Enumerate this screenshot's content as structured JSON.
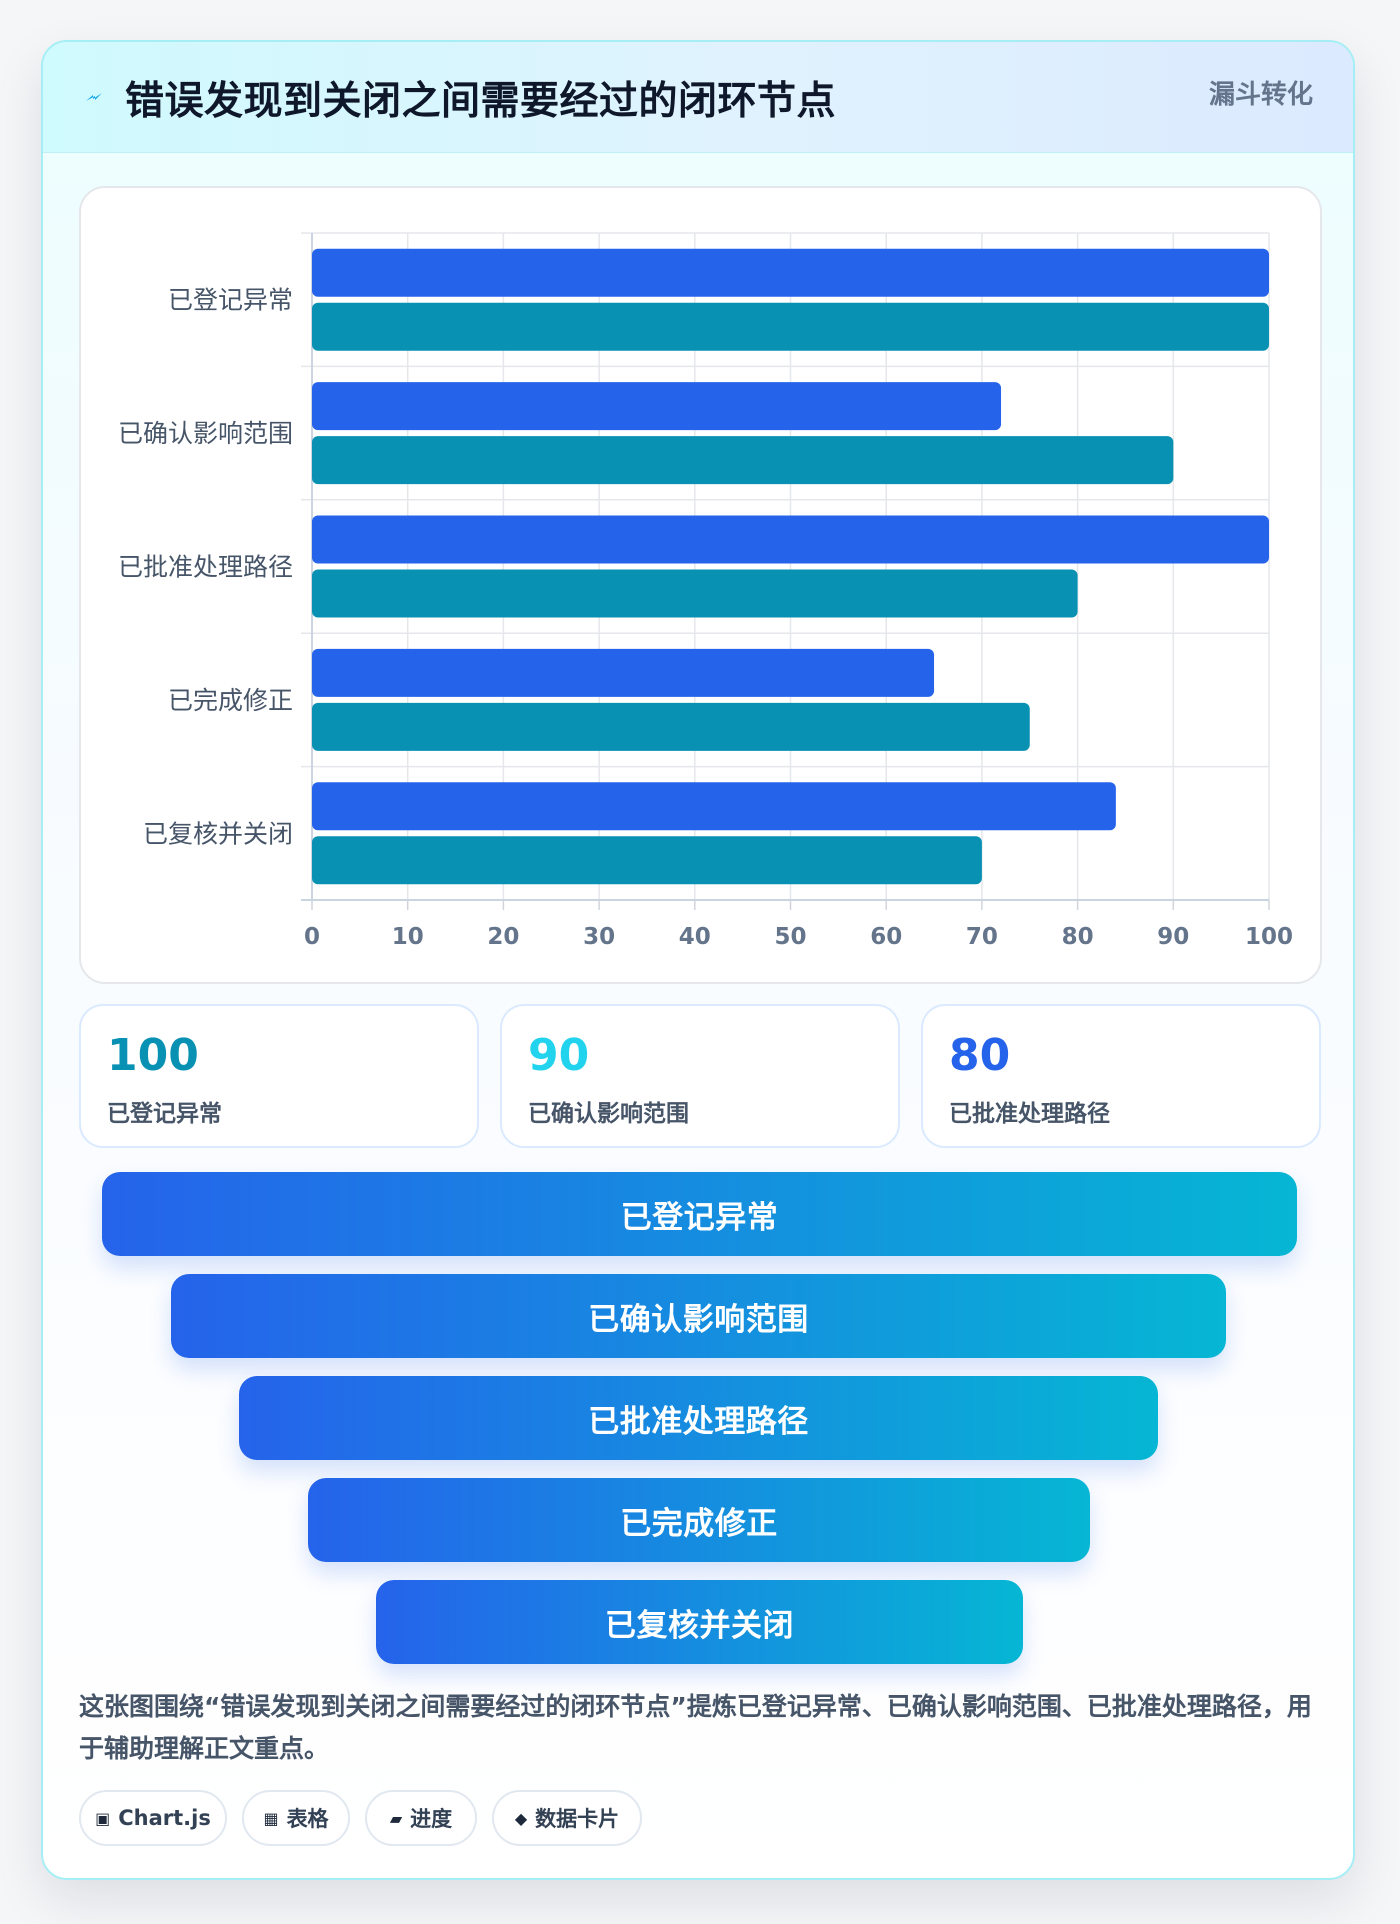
{
  "header": {
    "icon": "lightning-icon",
    "title": "错误发现到关闭之间需要经过的闭环节点",
    "tag": "漏斗转化"
  },
  "colors": {
    "series_a": "#2563eb",
    "series_b": "#0891b2",
    "stat_1": "#0891b2",
    "stat_2": "#22d3ee",
    "stat_3": "#2563eb"
  },
  "chart_data": {
    "type": "bar",
    "orientation": "horizontal",
    "categories": [
      "已登记异常",
      "已确认影响范围",
      "已批准处理路径",
      "已完成修正",
      "已复核并关闭"
    ],
    "series": [
      {
        "values": [
          100,
          72,
          100,
          65,
          84
        ]
      },
      {
        "values": [
          100,
          90,
          80,
          75,
          70
        ]
      }
    ],
    "xlim": [
      0,
      100
    ],
    "x_ticks": [
      "0",
      "10",
      "20",
      "30",
      "40",
      "50",
      "60",
      "70",
      "80",
      "90",
      "100"
    ],
    "grid": true,
    "legend": "none"
  },
  "stats": [
    {
      "value": "100",
      "label": "已登记异常"
    },
    {
      "value": "90",
      "label": "已确认影响范围"
    },
    {
      "value": "80",
      "label": "已批准处理路径"
    }
  ],
  "funnel": {
    "stages": [
      "已登记异常",
      "已确认影响范围",
      "已批准处理路径",
      "已完成修正",
      "已复核并关闭"
    ]
  },
  "note": "这张图围绕“错误发现到关闭之间需要经过的闭环节点”提炼已登记异常、已确认影响范围、已批准处理路径，用于辅助理解正文重点。",
  "chips": [
    {
      "icon": "▣",
      "label": "Chart.js"
    },
    {
      "icon": "▦",
      "label": "表格"
    },
    {
      "icon": "▰",
      "label": "进度"
    },
    {
      "icon": "◆",
      "label": "数据卡片"
    }
  ]
}
